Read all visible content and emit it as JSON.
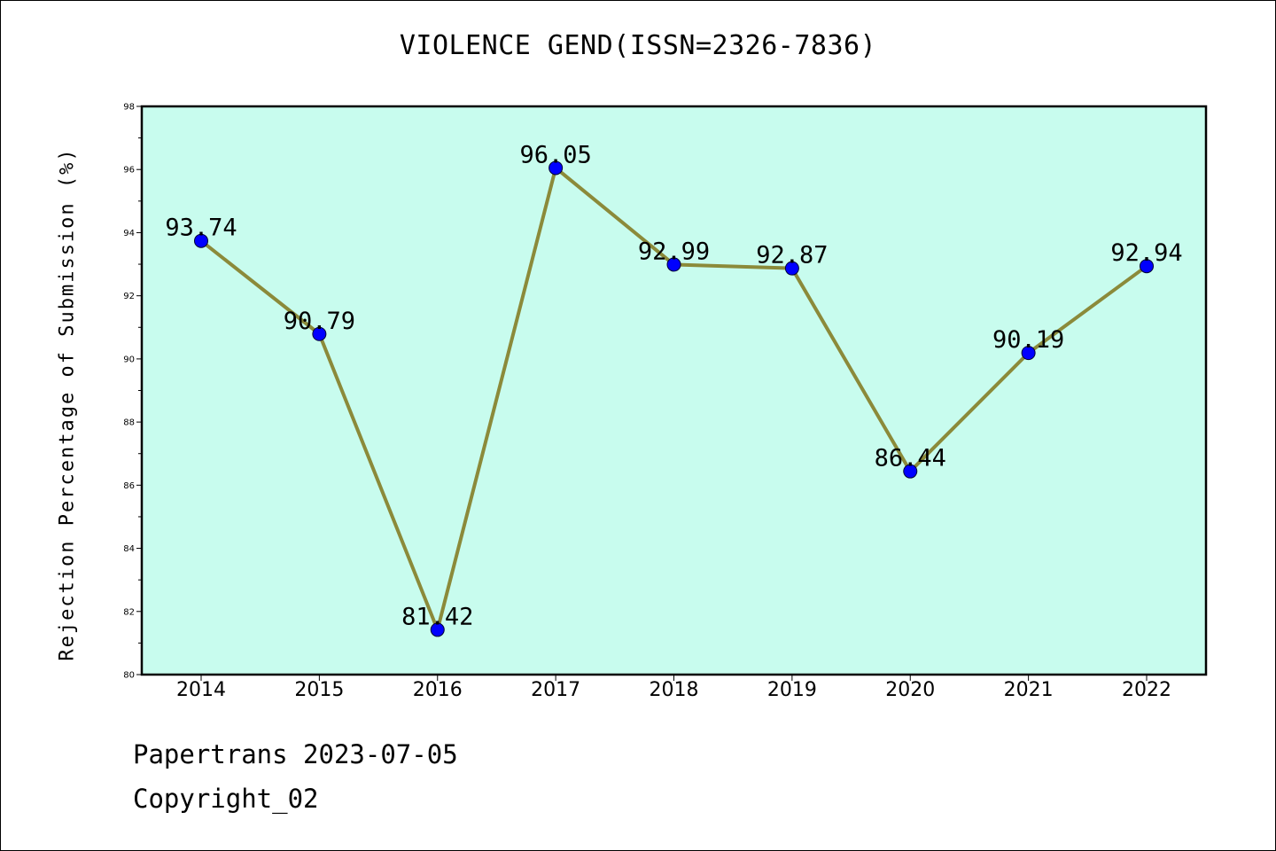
{
  "title": "VIOLENCE GEND(ISSN=2326-7836)",
  "footer": {
    "line1": "Papertrans 2023-07-05",
    "line2": "Copyright_02"
  },
  "colors": {
    "plot_background": "#c8fcee",
    "line": "#8b8a3a",
    "marker": "#0000ff",
    "frame": "#000000"
  },
  "chart_data": {
    "type": "line",
    "title": "VIOLENCE GEND(ISSN=2326-7836)",
    "xlabel": "",
    "ylabel": "Rejection Percentage of Submission (%)",
    "categories": [
      "2014",
      "2015",
      "2016",
      "2017",
      "2018",
      "2019",
      "2020",
      "2021",
      "2022"
    ],
    "values": [
      93.74,
      90.79,
      81.42,
      96.05,
      92.99,
      92.87,
      86.44,
      90.19,
      92.94
    ],
    "labels": [
      "93.74",
      "90.79",
      "81.42",
      "96.05",
      "92.99",
      "92.87",
      "86.44",
      "90.19",
      "92.94"
    ],
    "ylim": [
      80,
      98
    ],
    "yticks": [
      "80",
      "82",
      "84",
      "86",
      "88",
      "90",
      "92",
      "94",
      "96",
      "98"
    ],
    "grid": false,
    "legend": "none"
  }
}
